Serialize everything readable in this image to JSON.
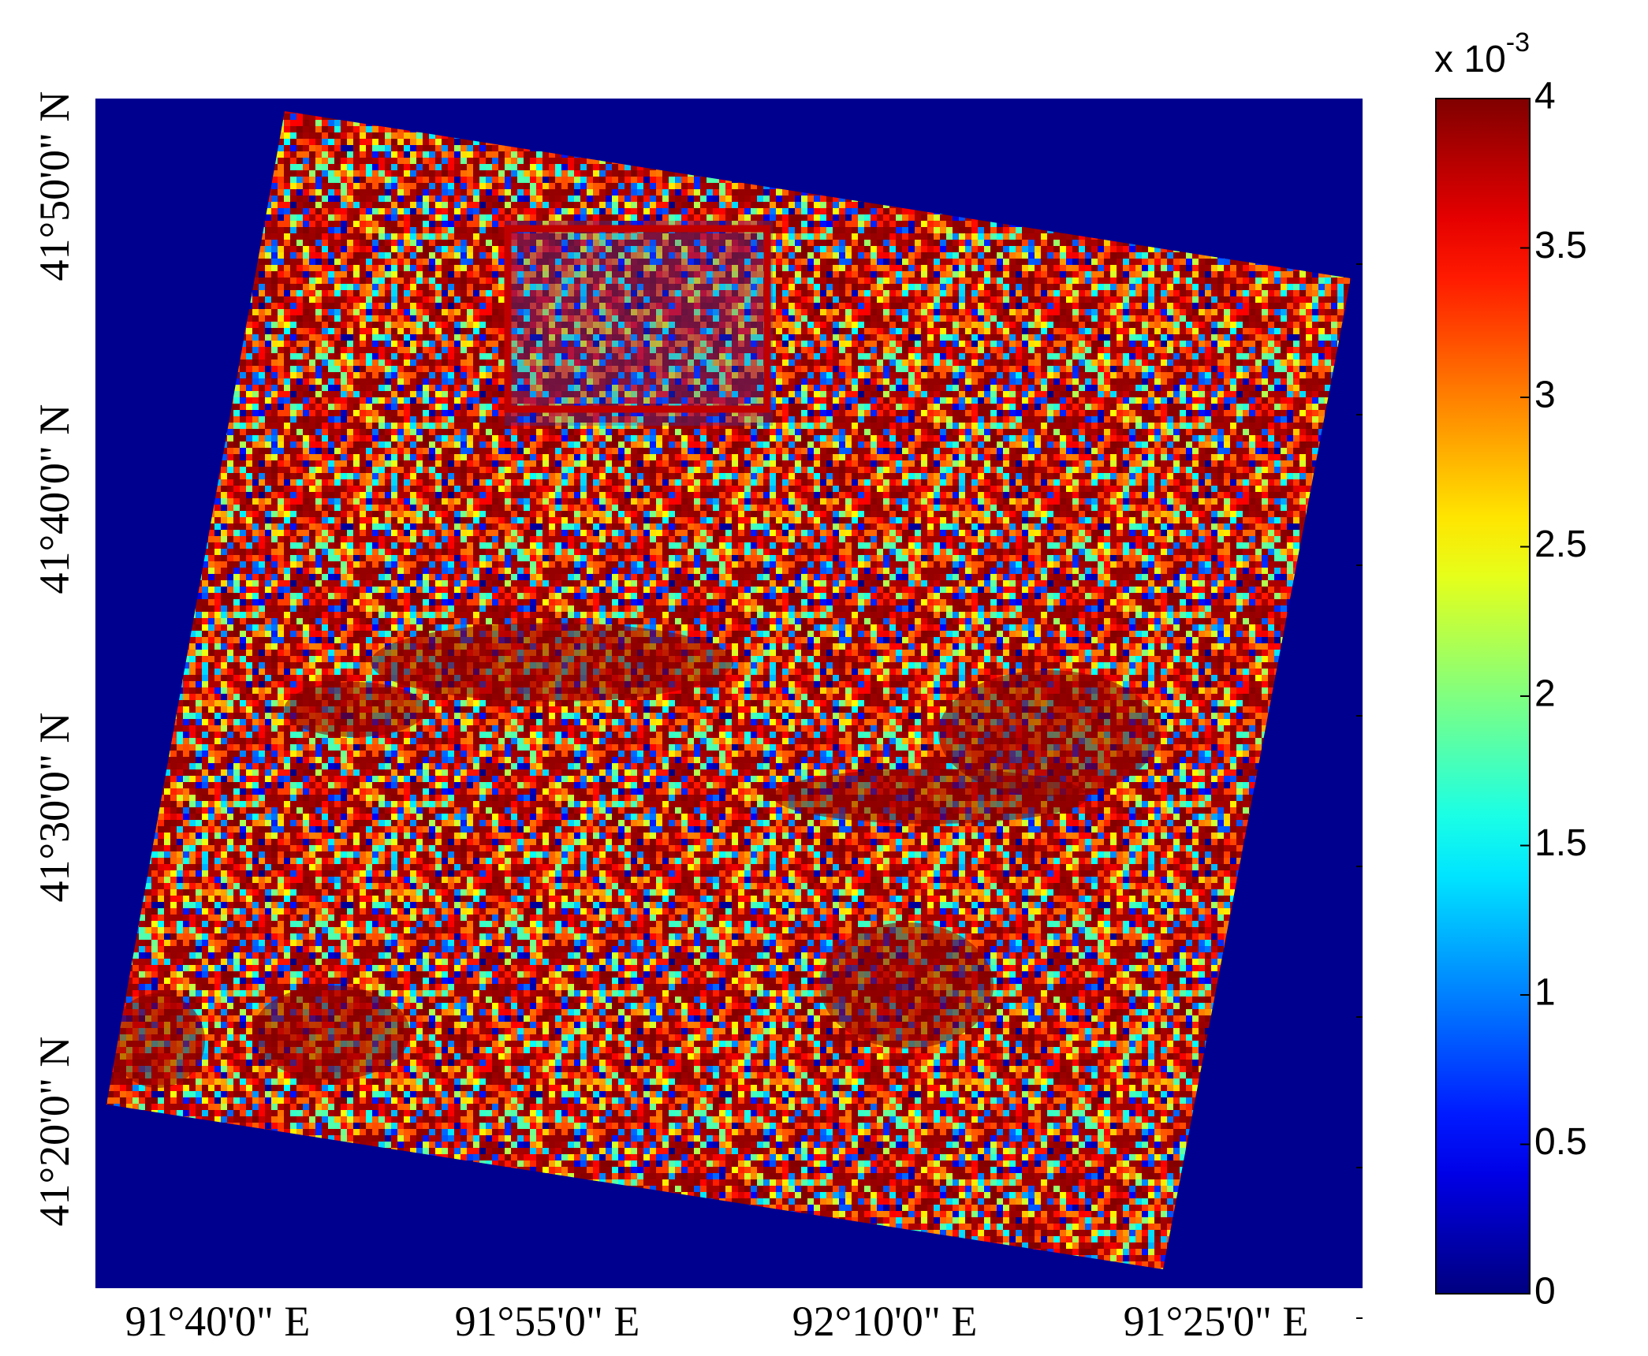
{
  "map": {
    "x_labels": [
      "91°40'0\" E",
      "91°55'0\" E",
      "92°10'0\" E",
      "91°25'0\" E"
    ],
    "y_labels": [
      "41°50'0\" N",
      "41°40'0\" N",
      "41°30'0\" N",
      "41°20'0\" N"
    ],
    "colorbar": {
      "colormap": "jet",
      "lim": [
        0,
        4
      ],
      "ticks": [
        0,
        0.5,
        1,
        1.5,
        2,
        2.5,
        3,
        3.5,
        4
      ],
      "multiplier": {
        "base": "x 10",
        "exponent": "-3"
      }
    }
  }
}
